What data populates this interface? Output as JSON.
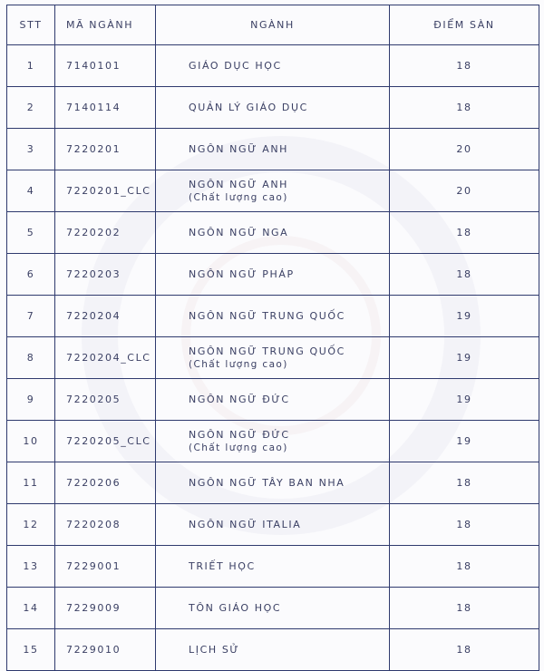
{
  "headers": {
    "stt": "STT",
    "code": "MÃ NGÀNH",
    "major": "NGÀNH",
    "score": "ĐIỂM SÀN"
  },
  "rows": [
    {
      "stt": "1",
      "code": "7140101",
      "major": "GIÁO DỤC HỌC",
      "note": "",
      "score": "18"
    },
    {
      "stt": "2",
      "code": "7140114",
      "major": "QUẢN LÝ GIÁO DỤC",
      "note": "",
      "score": "18"
    },
    {
      "stt": "3",
      "code": "7220201",
      "major": "NGÔN NGỮ ANH",
      "note": "",
      "score": "20"
    },
    {
      "stt": "4",
      "code": "7220201_CLC",
      "major": "NGÔN NGỮ ANH",
      "note": "(Chất lượng cao)",
      "score": "20"
    },
    {
      "stt": "5",
      "code": "7220202",
      "major": "NGÔN NGỮ NGA",
      "note": "",
      "score": "18"
    },
    {
      "stt": "6",
      "code": "7220203",
      "major": "NGÔN NGỮ PHÁP",
      "note": "",
      "score": "18"
    },
    {
      "stt": "7",
      "code": "7220204",
      "major": "NGÔN NGỮ TRUNG QUỐC",
      "note": "",
      "score": "19"
    },
    {
      "stt": "8",
      "code": "7220204_CLC",
      "major": "NGÔN NGỮ TRUNG QUỐC",
      "note": "(Chất lượng cao)",
      "score": "19"
    },
    {
      "stt": "9",
      "code": "7220205",
      "major": "NGÔN NGỮ ĐỨC",
      "note": "",
      "score": "19"
    },
    {
      "stt": "10",
      "code": "7220205_CLC",
      "major": "NGÔN NGỮ ĐỨC",
      "note": "(Chất lượng cao)",
      "score": "19"
    },
    {
      "stt": "11",
      "code": "7220206",
      "major": "NGÔN NGỮ TÂY BAN NHA",
      "note": "",
      "score": "18"
    },
    {
      "stt": "12",
      "code": "7220208",
      "major": "NGÔN NGỮ ITALIA",
      "note": "",
      "score": "18"
    },
    {
      "stt": "13",
      "code": "7229001",
      "major": "TRIẾT HỌC",
      "note": "",
      "score": "18"
    },
    {
      "stt": "14",
      "code": "7229009",
      "major": "TÔN GIÁO HỌC",
      "note": "",
      "score": "18"
    },
    {
      "stt": "15",
      "code": "7229010",
      "major": "LỊCH SỬ",
      "note": "",
      "score": "18"
    }
  ]
}
